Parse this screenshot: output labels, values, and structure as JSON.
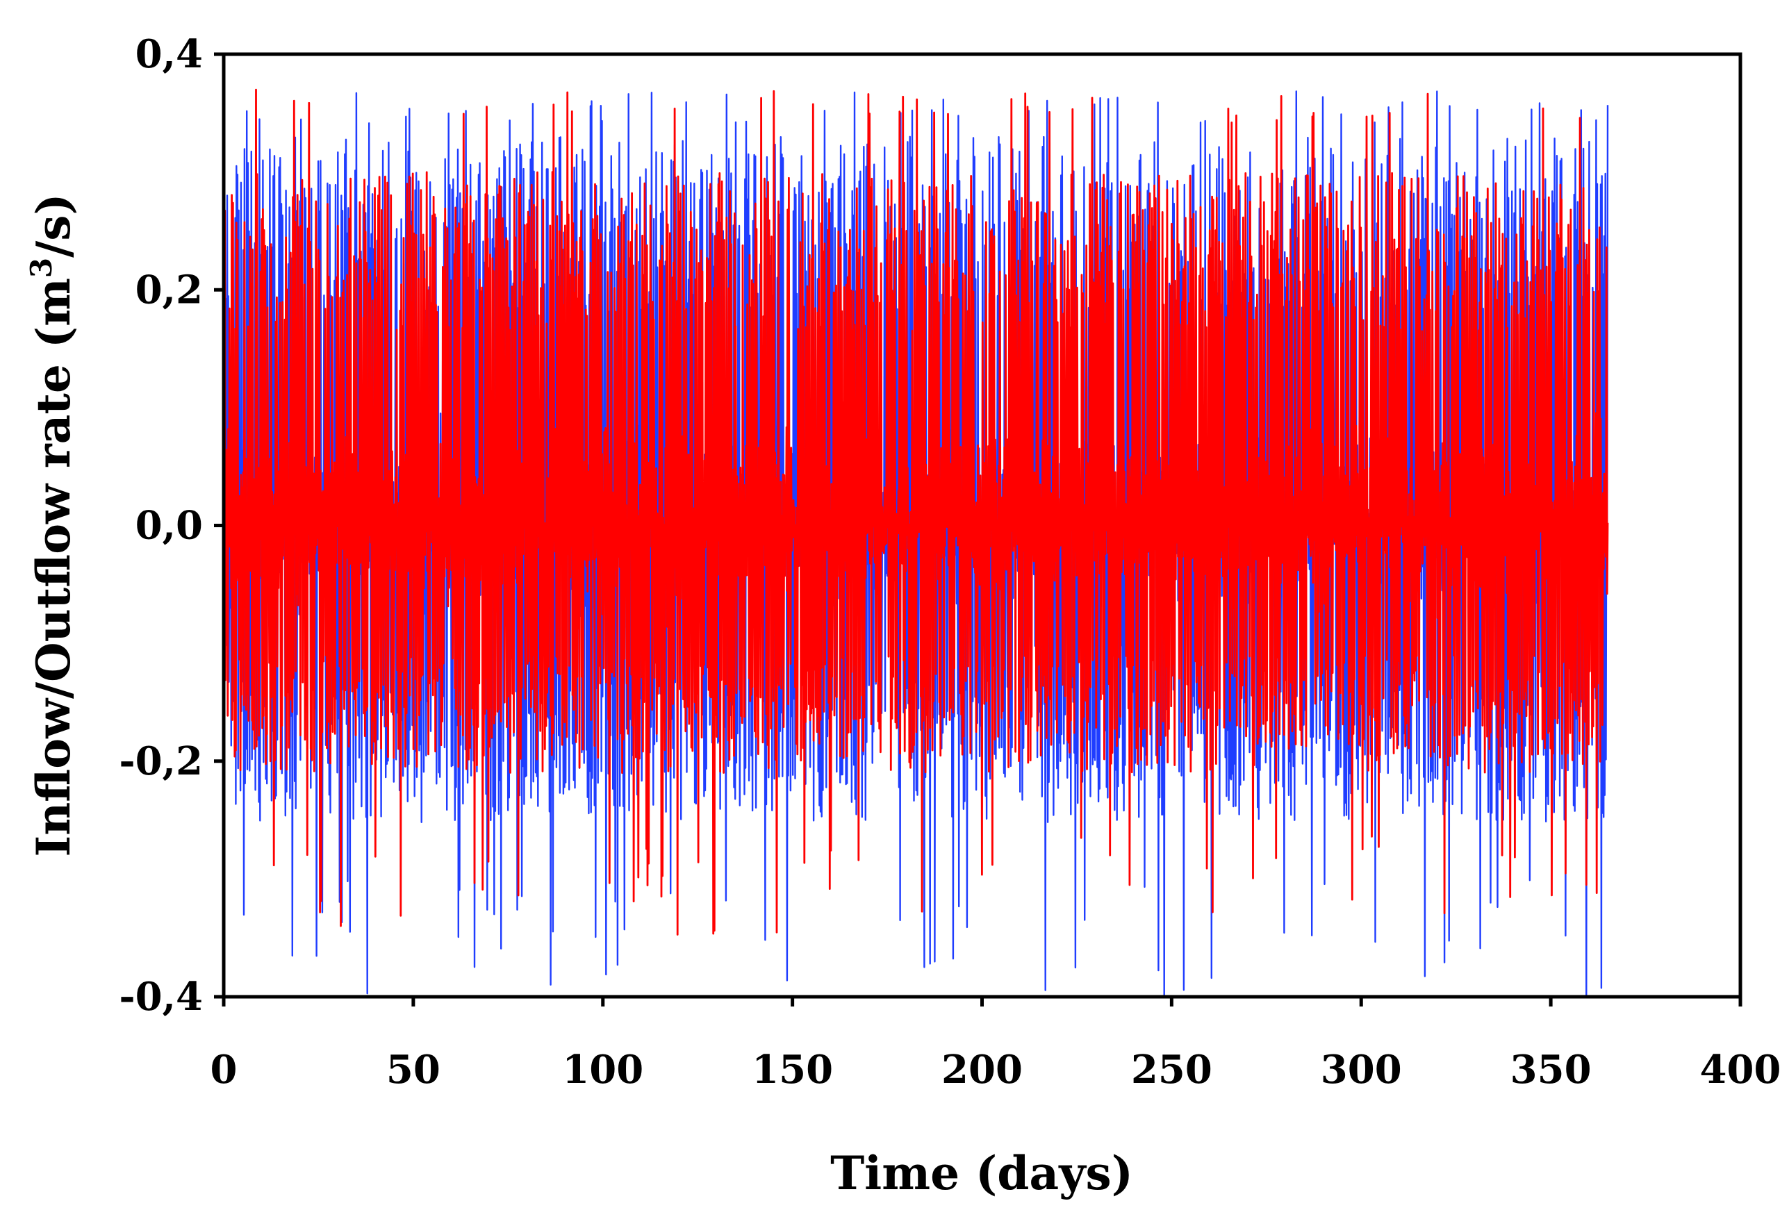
{
  "chart_data": {
    "type": "line",
    "title": "",
    "xlabel": "Time (days)",
    "ylabel_main": "Inflow/Outflow rate (m",
    "ylabel_sup": "3",
    "ylabel_tail": "/s)",
    "xlim": [
      0,
      400
    ],
    "ylim": [
      -0.4,
      0.4
    ],
    "x_ticks": [
      0,
      50,
      100,
      150,
      200,
      250,
      300,
      350,
      400
    ],
    "x_tick_labels": [
      "0",
      "50",
      "100",
      "150",
      "200",
      "250",
      "300",
      "350",
      "400"
    ],
    "y_ticks": [
      -0.4,
      -0.2,
      0.0,
      0.2,
      0.4
    ],
    "y_tick_labels": [
      "-0,4",
      "-0,2",
      "0,0",
      "0,2",
      "0,4"
    ],
    "grid": false,
    "legend": "none",
    "x_range_of_data": [
      0,
      365
    ],
    "series": [
      {
        "name": "Inflow/Outflow rate (blue)",
        "color": "#1f3dff",
        "approx_envelope": {
          "max": 0.37,
          "min": -0.4,
          "typical_peak": 0.33,
          "typical_trough": -0.24
        },
        "notes": "dense oscillating daily cycle signal over 365 days"
      },
      {
        "name": "Inflow/Outflow rate (red)",
        "color": "#ff0000",
        "approx_envelope": {
          "max": 0.37,
          "min": -0.35,
          "typical_peak": 0.3,
          "typical_trough": -0.2
        },
        "notes": "dense oscillating daily cycle signal over 365 days, drawn on top"
      }
    ]
  }
}
